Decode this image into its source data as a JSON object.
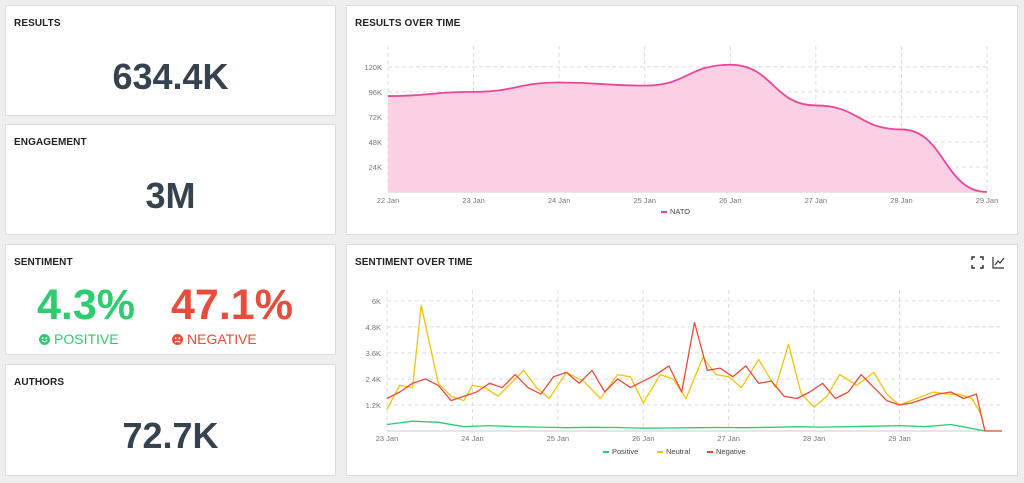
{
  "results": {
    "title": "RESULTS",
    "value": "634.4K"
  },
  "engagement": {
    "title": "ENGAGEMENT",
    "value": "3M"
  },
  "sentiment": {
    "title": "SENTIMENT",
    "positive_pct": "4.3%",
    "positive_label": "POSITIVE",
    "negative_pct": "47.1%",
    "negative_label": "NEGATIVE",
    "positive_color": "#2ecc71",
    "negative_color": "#e74c3c"
  },
  "authors": {
    "title": "AUTHORS",
    "value": "72.7K"
  },
  "results_over_time": {
    "title": "RESULTS OVER TIME",
    "chart_data": {
      "type": "area",
      "title": "RESULTS OVER TIME",
      "x": [
        "22 Jan",
        "23 Jan",
        "24 Jan",
        "25 Jan",
        "26 Jan",
        "27 Jan",
        "28 Jan",
        "29 Jan"
      ],
      "series": [
        {
          "name": "NATO",
          "color": "#e8489a",
          "fill": "#fcd0e4",
          "values": [
            92000,
            96000,
            105000,
            102000,
            122000,
            83000,
            60000,
            0
          ]
        }
      ],
      "y_ticks": [
        "24K",
        "48K",
        "72K",
        "96K",
        "120K"
      ],
      "ylim": [
        0,
        140000
      ],
      "grid": true,
      "legend": "bottom"
    }
  },
  "sentiment_over_time": {
    "title": "SENTIMENT OVER TIME",
    "icons": [
      "fullscreen-icon",
      "line-chart-icon"
    ],
    "chart_data": {
      "type": "line",
      "title": "SENTIMENT OVER TIME",
      "x_ticks": [
        "23 Jan",
        "24 Jan",
        "25 Jan",
        "26 Jan",
        "27 Jan",
        "28 Jan",
        "29 Jan"
      ],
      "y_ticks": [
        "1.2K",
        "2.4K",
        "3.6K",
        "4.8K",
        "6K"
      ],
      "ylim": [
        0,
        6500
      ],
      "xlim": [
        0,
        7.2
      ],
      "grid": true,
      "legend": "bottom",
      "series": [
        {
          "name": "Positive",
          "color": "#2ecc71",
          "x": [
            0,
            0.3,
            0.6,
            0.9,
            1.2,
            1.5,
            1.8,
            2.1,
            2.4,
            2.7,
            3.0,
            3.3,
            3.6,
            3.9,
            4.2,
            4.5,
            4.8,
            5.1,
            5.4,
            5.7,
            6.0,
            6.3,
            6.6,
            6.8,
            7.0
          ],
          "y": [
            300,
            450,
            400,
            200,
            250,
            200,
            180,
            150,
            170,
            160,
            130,
            140,
            150,
            160,
            150,
            170,
            200,
            180,
            200,
            220,
            250,
            200,
            300,
            150,
            0
          ]
        },
        {
          "name": "Neutral",
          "color": "#f1c40f",
          "x": [
            0,
            0.15,
            0.3,
            0.4,
            0.5,
            0.6,
            0.75,
            0.9,
            1.0,
            1.15,
            1.3,
            1.45,
            1.6,
            1.75,
            1.9,
            2.1,
            2.3,
            2.5,
            2.7,
            2.85,
            3.0,
            3.2,
            3.35,
            3.5,
            3.7,
            3.85,
            4.0,
            4.15,
            4.35,
            4.55,
            4.7,
            4.85,
            5.0,
            5.15,
            5.3,
            5.5,
            5.7,
            5.85,
            6.0,
            6.2,
            6.4,
            6.55,
            6.7,
            6.85,
            6.95,
            7.0,
            7.2
          ],
          "y": [
            1000,
            2100,
            2000,
            5800,
            4000,
            2200,
            1600,
            1400,
            2100,
            2000,
            1600,
            2200,
            2800,
            2000,
            1500,
            2700,
            2300,
            1500,
            2600,
            2500,
            1300,
            2600,
            2400,
            1500,
            3400,
            2600,
            2500,
            2000,
            3300,
            2000,
            4000,
            1700,
            1100,
            1600,
            2600,
            2100,
            2700,
            1700,
            1200,
            1500,
            1800,
            1700,
            1700,
            1500,
            800,
            0,
            0
          ]
        },
        {
          "name": "Negative",
          "color": "#e74c3c",
          "x": [
            0,
            0.15,
            0.3,
            0.45,
            0.6,
            0.75,
            0.9,
            1.05,
            1.2,
            1.35,
            1.5,
            1.65,
            1.8,
            1.95,
            2.1,
            2.25,
            2.4,
            2.55,
            2.7,
            2.85,
            3.0,
            3.15,
            3.3,
            3.45,
            3.6,
            3.75,
            3.9,
            4.05,
            4.2,
            4.35,
            4.5,
            4.65,
            4.8,
            4.95,
            5.1,
            5.25,
            5.4,
            5.55,
            5.7,
            5.85,
            6.0,
            6.15,
            6.3,
            6.45,
            6.6,
            6.75,
            6.9,
            7.0,
            7.2
          ],
          "y": [
            1500,
            1800,
            2200,
            2400,
            2100,
            1400,
            1600,
            1800,
            2200,
            2000,
            2600,
            2000,
            1700,
            2500,
            2700,
            2200,
            2800,
            1800,
            2400,
            2000,
            2300,
            2600,
            3000,
            1800,
            5000,
            2800,
            2900,
            2500,
            3000,
            2200,
            2300,
            1600,
            1500,
            1800,
            2200,
            1500,
            1800,
            2600,
            2000,
            1400,
            1200,
            1300,
            1500,
            1700,
            1800,
            1500,
            1700,
            0,
            0
          ]
        }
      ]
    }
  }
}
